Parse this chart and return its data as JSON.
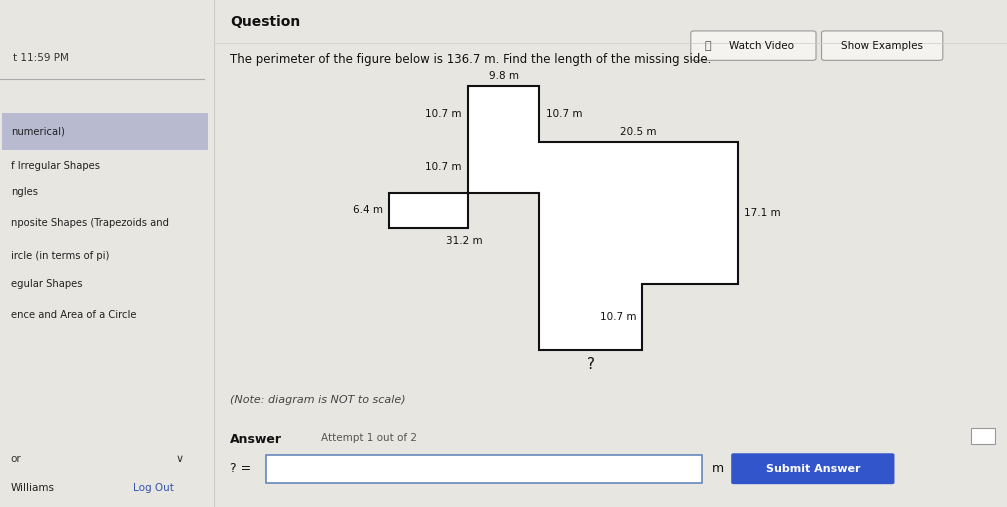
{
  "bg_color": "#e8e6e1",
  "left_panel_bg": "#e2e0e8",
  "right_panel_bg": "#eeece8",
  "title": "Question",
  "problem_text": "The perimeter of the figure below is 136.7 m. Find the length of the missing side.",
  "note_text": "(Note: diagram is NOT to scale)",
  "answer_label": "Answer",
  "attempt_text": "Attempt 1 out of 2",
  "submit_text": "Submit Answer",
  "watch_video": "Watch Video",
  "show_examples": "Show Examples",
  "time_text": "t 11:59 PM",
  "left_menu": [
    "numerical)",
    "f Irregular Shapes",
    "ngles",
    "nposite Shapes (Trapezoids and",
    "ircle (in terms of pi)",
    "egular Shapes",
    "ence and Area of a Circle"
  ],
  "bottom_left_or": "or",
  "bottom_left_name": "Williams",
  "bottom_left_logout": "Log Out",
  "label_9_8": "9.8 m",
  "label_10_7_left1": "10.7 m",
  "label_10_7_left2": "10.7 m",
  "label_6_4": "6.4 m",
  "label_31_2": "31.2 m",
  "label_10_7_right": "10.7 m",
  "label_20_5": "20.5 m",
  "label_17_1": "17.1 m",
  "label_10_7_inner": "10.7 m",
  "label_q": "?",
  "m_label": "m",
  "equals_text": "? =",
  "shape_fill": "#ffffff",
  "shape_edge": "#111111",
  "line_width": 1.5,
  "highlight_color": "#b8bbd0",
  "submit_color": "#3355cc",
  "input_border": "#6688bb"
}
